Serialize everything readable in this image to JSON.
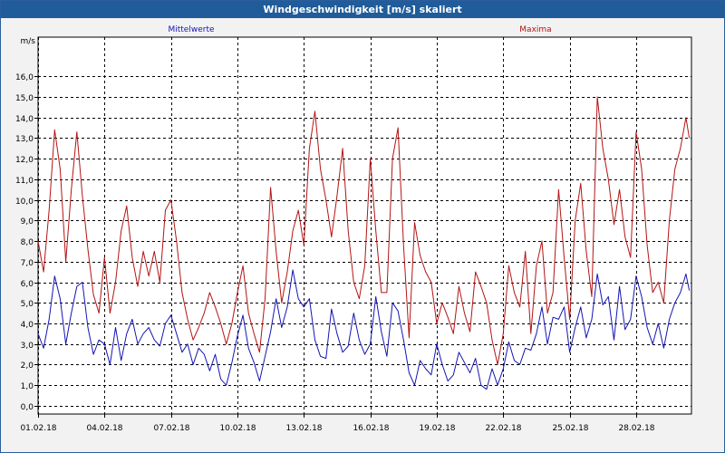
{
  "window": {
    "title": "Windgeschwindigkeit [m/s] skaliert"
  },
  "colors": {
    "titlebar": "#1f5c99",
    "mean": "#1414b4",
    "max": "#b41414"
  },
  "chart_data": {
    "type": "line",
    "title": "Windgeschwindigkeit [m/s] skaliert",
    "ylabel": "m/s",
    "xlabel": "",
    "ylim": [
      -0.4,
      17.9
    ],
    "yticks": [
      "0,0",
      "1,0",
      "2,0",
      "3,0",
      "4,0",
      "5,0",
      "6,0",
      "7,0",
      "8,0",
      "9,0",
      "10,0",
      "11,0",
      "12,0",
      "13,0",
      "14,0",
      "15,0",
      "16,0"
    ],
    "xlim": [
      0,
      29.5
    ],
    "xticks": [
      "01.02.18",
      "04.02.18",
      "07.02.18",
      "10.02.18",
      "13.02.18",
      "16.02.18",
      "19.02.18",
      "22.02.18",
      "25.02.18",
      "28.02.18"
    ],
    "grid": true,
    "series": [
      {
        "name": "Mittelwerte",
        "color": "#1414b4",
        "x": [
          0,
          0.25,
          0.5,
          0.75,
          1,
          1.25,
          1.5,
          1.75,
          2,
          2.25,
          2.5,
          2.75,
          3,
          3.25,
          3.5,
          3.75,
          4,
          4.25,
          4.5,
          4.75,
          5,
          5.25,
          5.5,
          5.75,
          6,
          6.25,
          6.5,
          6.75,
          7,
          7.25,
          7.5,
          7.75,
          8,
          8.25,
          8.5,
          8.75,
          9,
          9.25,
          9.5,
          9.75,
          10,
          10.25,
          10.5,
          10.75,
          11,
          11.25,
          11.5,
          11.75,
          12,
          12.25,
          12.5,
          12.75,
          13,
          13.25,
          13.5,
          13.75,
          14,
          14.25,
          14.5,
          14.75,
          15,
          15.25,
          15.5,
          15.75,
          16,
          16.25,
          16.5,
          16.75,
          17,
          17.25,
          17.5,
          17.75,
          18,
          18.25,
          18.5,
          18.75,
          19,
          19.25,
          19.5,
          19.75,
          20,
          20.25,
          20.5,
          20.75,
          21,
          21.25,
          21.5,
          21.75,
          22,
          22.25,
          22.5,
          22.75,
          23,
          23.25,
          23.5,
          23.75,
          24,
          24.25,
          24.5,
          24.75,
          25,
          25.25,
          25.5,
          25.75,
          26,
          26.25,
          26.5,
          26.75,
          27,
          27.25,
          27.5,
          27.75,
          28,
          28.25,
          28.5,
          28.75,
          29,
          29.25,
          29.4
        ],
        "values": [
          3.5,
          2.8,
          4.2,
          6.3,
          5.2,
          3.0,
          4.5,
          5.8,
          6.0,
          3.8,
          2.5,
          3.2,
          3.0,
          2.0,
          3.8,
          2.2,
          3.5,
          4.2,
          3.0,
          3.5,
          3.8,
          3.2,
          2.9,
          4.0,
          4.4,
          3.5,
          2.6,
          3.0,
          2.0,
          2.8,
          2.5,
          1.7,
          2.5,
          1.3,
          1.0,
          2.1,
          3.4,
          4.4,
          2.8,
          2.1,
          1.2,
          2.4,
          3.6,
          5.2,
          3.8,
          4.8,
          6.6,
          5.2,
          4.8,
          5.2,
          3.2,
          2.4,
          2.3,
          4.7,
          3.5,
          2.6,
          2.9,
          4.5,
          3.2,
          2.5,
          3.0,
          5.3,
          3.6,
          2.4,
          5.0,
          4.6,
          3.2,
          1.6,
          1.0,
          2.2,
          1.8,
          1.5,
          3.0,
          2.0,
          1.2,
          1.5,
          2.6,
          2.1,
          1.6,
          2.3,
          1.0,
          0.8,
          1.8,
          1.0,
          1.8,
          3.1,
          2.2,
          2.0,
          2.8,
          2.7,
          3.5,
          4.8,
          3.0,
          4.3,
          4.2,
          4.8,
          2.6,
          3.8,
          4.8,
          3.3,
          4.2,
          6.4,
          4.9,
          5.3,
          3.2,
          5.8,
          3.7,
          4.2,
          6.3,
          5.3,
          3.8,
          3.0,
          4.0,
          2.8,
          4.2,
          5.0,
          5.5,
          6.4,
          5.6
        ]
      },
      {
        "name": "Maxima",
        "color": "#b41414",
        "x": [
          0,
          0.25,
          0.5,
          0.75,
          1,
          1.25,
          1.5,
          1.75,
          2,
          2.25,
          2.5,
          2.75,
          3,
          3.25,
          3.5,
          3.75,
          4,
          4.25,
          4.5,
          4.75,
          5,
          5.25,
          5.5,
          5.75,
          6,
          6.25,
          6.5,
          6.75,
          7,
          7.25,
          7.5,
          7.75,
          8,
          8.25,
          8.5,
          8.75,
          9,
          9.25,
          9.5,
          9.75,
          10,
          10.25,
          10.5,
          10.75,
          11,
          11.25,
          11.5,
          11.75,
          12,
          12.25,
          12.5,
          12.75,
          13,
          13.25,
          13.5,
          13.75,
          14,
          14.25,
          14.5,
          14.75,
          15,
          15.25,
          15.5,
          15.75,
          16,
          16.25,
          16.5,
          16.75,
          17,
          17.25,
          17.5,
          17.75,
          18,
          18.25,
          18.5,
          18.75,
          19,
          19.25,
          19.5,
          19.75,
          20,
          20.25,
          20.5,
          20.75,
          21,
          21.25,
          21.5,
          21.75,
          22,
          22.25,
          22.5,
          22.75,
          23,
          23.25,
          23.5,
          23.75,
          24,
          24.25,
          24.5,
          24.75,
          25,
          25.25,
          25.5,
          25.75,
          26,
          26.25,
          26.5,
          26.75,
          27,
          27.25,
          27.5,
          27.75,
          28,
          28.25,
          28.5,
          28.75,
          29,
          29.25,
          29.4
        ],
        "values": [
          8.0,
          6.5,
          9.5,
          13.4,
          11.5,
          7.0,
          10.5,
          13.3,
          10.2,
          7.6,
          5.4,
          4.5,
          7.2,
          4.5,
          6.0,
          8.5,
          9.7,
          7.2,
          5.8,
          7.5,
          6.3,
          7.5,
          6.0,
          9.5,
          10.0,
          8.0,
          5.5,
          4.2,
          3.2,
          3.8,
          4.5,
          5.5,
          4.8,
          4.0,
          3.0,
          4.0,
          5.5,
          6.8,
          4.5,
          3.5,
          2.6,
          5.2,
          10.6,
          7.5,
          5.0,
          6.5,
          8.5,
          9.5,
          7.8,
          12.5,
          14.3,
          11.5,
          10.0,
          8.2,
          10.2,
          12.5,
          8.5,
          6.0,
          5.2,
          6.8,
          12.0,
          8.5,
          5.5,
          5.5,
          12.0,
          13.5,
          7.8,
          3.3,
          8.9,
          7.3,
          6.5,
          6.0,
          4.0,
          5.0,
          4.3,
          3.5,
          5.8,
          4.5,
          3.6,
          6.5,
          5.8,
          5.0,
          3.2,
          2.0,
          3.5,
          6.8,
          5.5,
          4.8,
          7.5,
          3.5,
          6.8,
          8.0,
          4.5,
          5.5,
          10.5,
          7.2,
          4.2,
          9.0,
          10.8,
          7.5,
          5.3,
          15.0,
          12.5,
          11.0,
          8.8,
          10.5,
          8.2,
          7.2,
          13.3,
          11.5,
          7.8,
          5.5,
          6.0,
          5.0,
          9.0,
          11.5,
          12.5,
          14.0,
          13.0
        ]
      }
    ]
  }
}
